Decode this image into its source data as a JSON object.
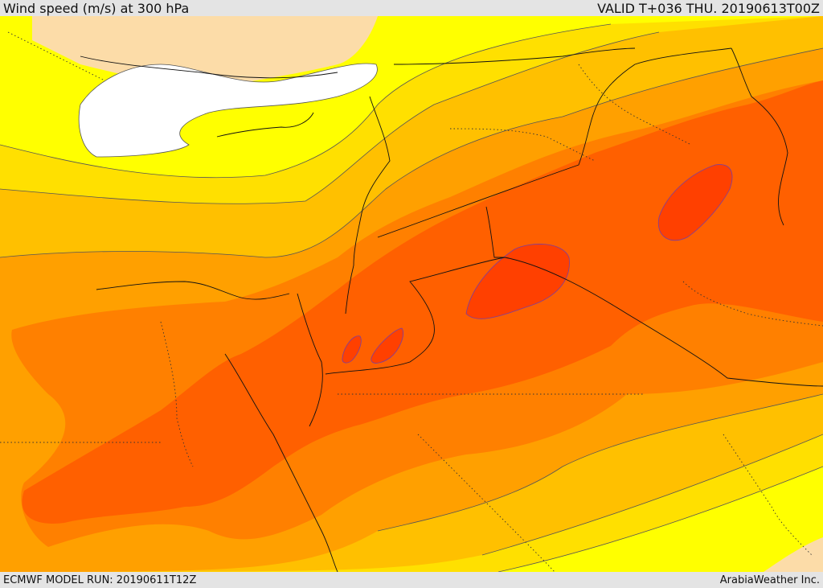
{
  "header": {
    "title": "Wind speed (m/s) at 300 hPa",
    "valid": "VALID T+036 THU. 20190613T00Z"
  },
  "footer": {
    "model_run": "ECMWF MODEL RUN: 20190611T12Z",
    "credit": "ArabiaWeather Inc."
  },
  "colors": {
    "calm": "#ffffff",
    "land_low": "#fcdca8",
    "yellow": "#ffff00",
    "gold": "#ffe000",
    "amber": "#ffc000",
    "orange": "#ffa000",
    "dark_orange": "#ff8000",
    "red_orange": "#ff6000",
    "red": "#ff4000"
  }
}
